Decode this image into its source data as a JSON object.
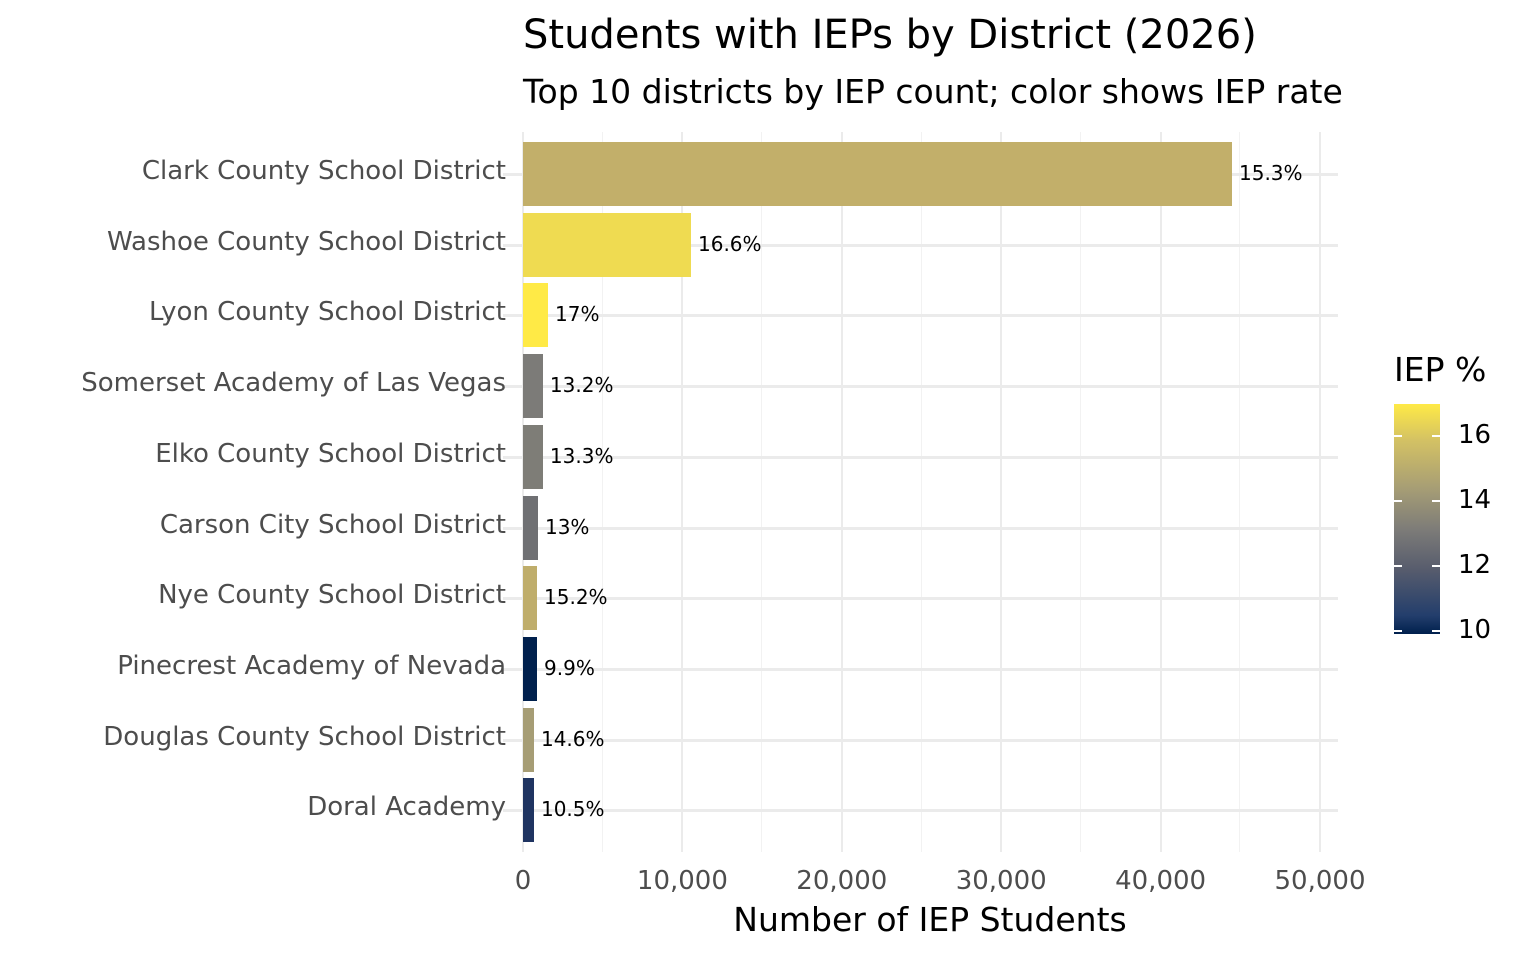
{
  "chart_data": {
    "type": "bar",
    "orientation": "horizontal",
    "title": "Students with IEPs by District (2026)",
    "subtitle": "Top 10 districts by IEP count; color shows IEP rate",
    "xlabel": "Number of IEP Students",
    "ylabel": "",
    "xlim": [
      0,
      51200
    ],
    "xticks": [
      "0",
      "10,000",
      "20,000",
      "30,000",
      "40,000",
      "50,000"
    ],
    "grid": true,
    "categories": [
      "Clark County School District",
      "Washoe County School District",
      "Lyon County School District",
      "Somerset Academy of Las Vegas",
      "Elko County School District",
      "Carson City School District",
      "Nye County School District",
      "Pinecrest Academy of Nevada",
      "Douglas County School District",
      "Doral Academy"
    ],
    "values": [
      44480,
      10540,
      1570,
      1250,
      1250,
      940,
      880,
      880,
      690,
      690
    ],
    "iep_rate_labels": [
      "15.3%",
      "16.6%",
      "17%",
      "13.2%",
      "13.3%",
      "13%",
      "15.2%",
      "9.9%",
      "14.6%",
      "10.5%"
    ],
    "iep_rate": [
      15.3,
      16.6,
      17.0,
      13.2,
      13.3,
      13.0,
      15.2,
      9.9,
      14.6,
      10.5
    ],
    "bar_colors": [
      "#C2AF6A",
      "#EFDB51",
      "#FFEA46",
      "#7C7B78",
      "#7E7D77",
      "#6F7073",
      "#BFAD6B",
      "#00204D",
      "#A69D75",
      "#1F3461"
    ],
    "legend": {
      "title": "IEP %",
      "position": "right",
      "type": "colorbar",
      "ticks": [
        "16",
        "14",
        "12",
        "10"
      ],
      "range": [
        9.9,
        17.0
      ],
      "colormap": "cividis"
    }
  }
}
